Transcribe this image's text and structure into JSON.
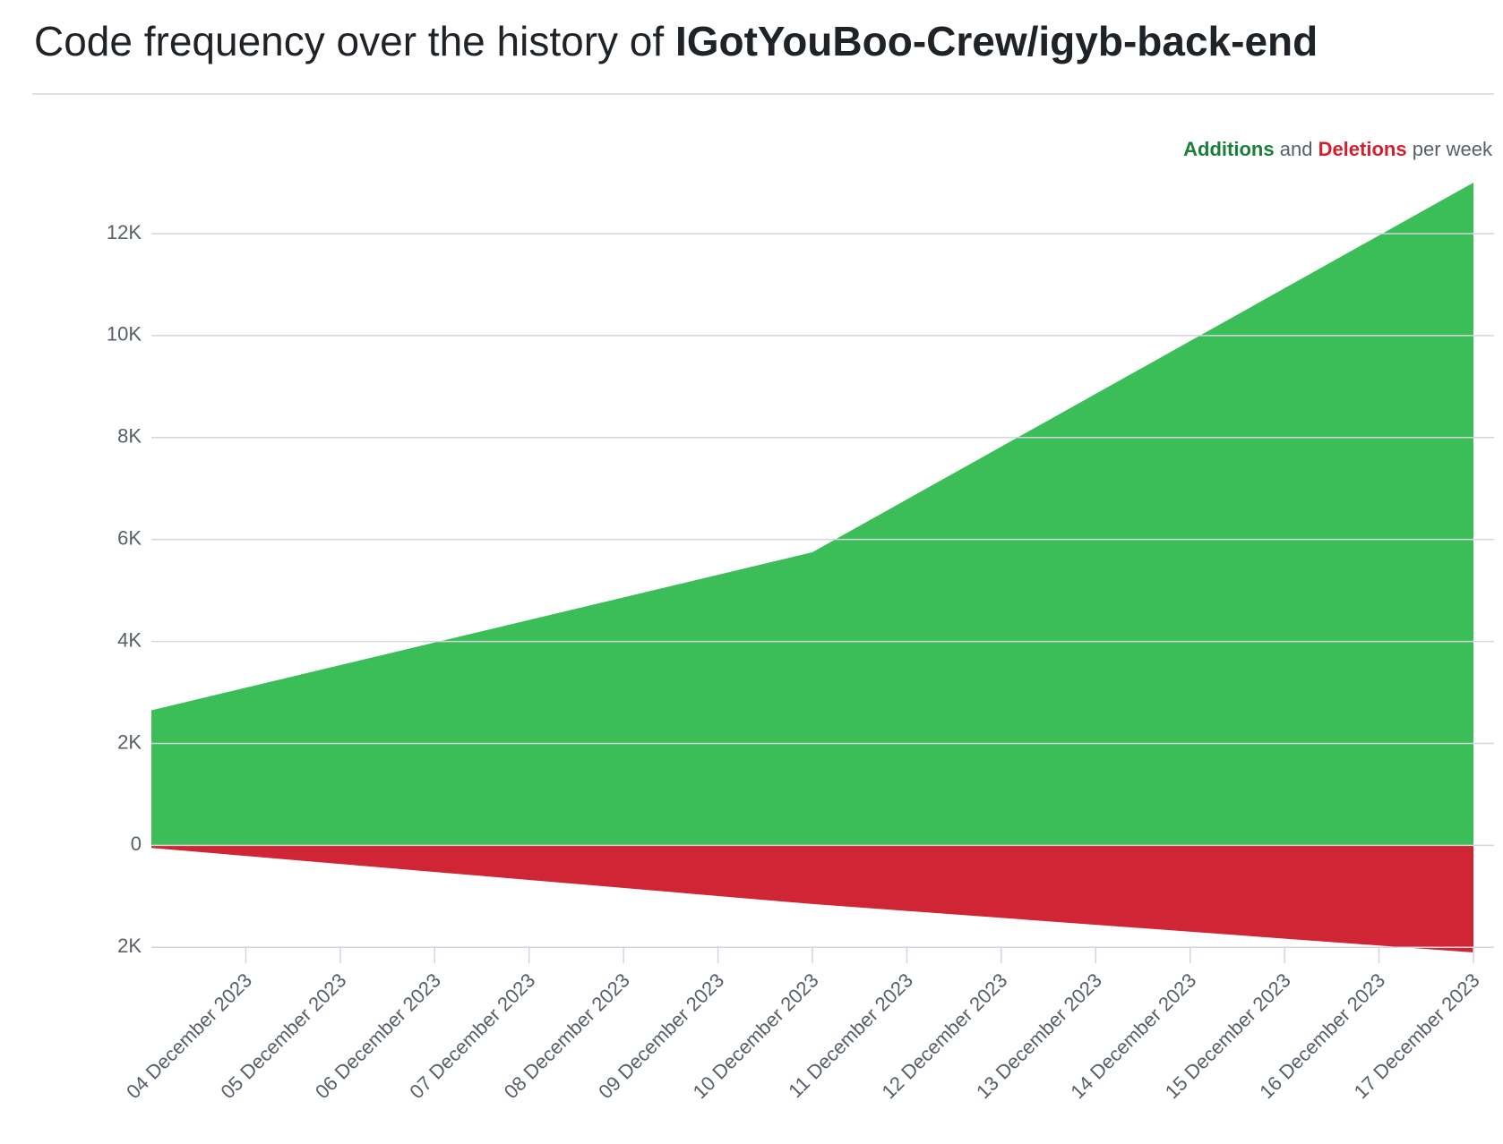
{
  "chart_data": {
    "type": "area",
    "title": "Code frequency over the history of",
    "repository": "IGotYouBoo-Crew/igyb-back-end",
    "legend": {
      "between": "and",
      "suffix": "per week"
    },
    "x": [
      "2023-12-03",
      "2023-12-10",
      "2023-12-17"
    ],
    "xlim": [
      "2023-12-03",
      "2023-12-17"
    ],
    "xticks": [
      {
        "value": "2023-12-04",
        "label": "04 December 2023"
      },
      {
        "value": "2023-12-05",
        "label": "05 December 2023"
      },
      {
        "value": "2023-12-06",
        "label": "06 December 2023"
      },
      {
        "value": "2023-12-07",
        "label": "07 December 2023"
      },
      {
        "value": "2023-12-08",
        "label": "08 December 2023"
      },
      {
        "value": "2023-12-09",
        "label": "09 December 2023"
      },
      {
        "value": "2023-12-10",
        "label": "10 December 2023"
      },
      {
        "value": "2023-12-11",
        "label": "11 December 2023"
      },
      {
        "value": "2023-12-12",
        "label": "12 December 2023"
      },
      {
        "value": "2023-12-13",
        "label": "13 December 2023"
      },
      {
        "value": "2023-12-14",
        "label": "14 December 2023"
      },
      {
        "value": "2023-12-15",
        "label": "15 December 2023"
      },
      {
        "value": "2023-12-16",
        "label": "16 December 2023"
      },
      {
        "value": "2023-12-17",
        "label": "17 December 2023"
      }
    ],
    "series": [
      {
        "name": "Additions",
        "color": "#3bbd57",
        "label_color": "#1a7f37",
        "values": [
          2650,
          5750,
          13000
        ]
      },
      {
        "name": "Deletions",
        "color": "#cf2535",
        "label_color": "#cf222e",
        "values": [
          -50,
          -1150,
          -2100
        ]
      }
    ],
    "ylim": [
      -2100,
      13000
    ],
    "yticks": [
      {
        "value": -2000,
        "label": "2K"
      },
      0,
      {
        "value": 2000,
        "label": "2K"
      },
      {
        "value": 4000,
        "label": "4K"
      },
      {
        "value": 6000,
        "label": "6K"
      },
      {
        "value": 8000,
        "label": "8K"
      },
      {
        "value": 10000,
        "label": "10K"
      },
      {
        "value": 12000,
        "label": "12K"
      }
    ],
    "grid": true
  }
}
